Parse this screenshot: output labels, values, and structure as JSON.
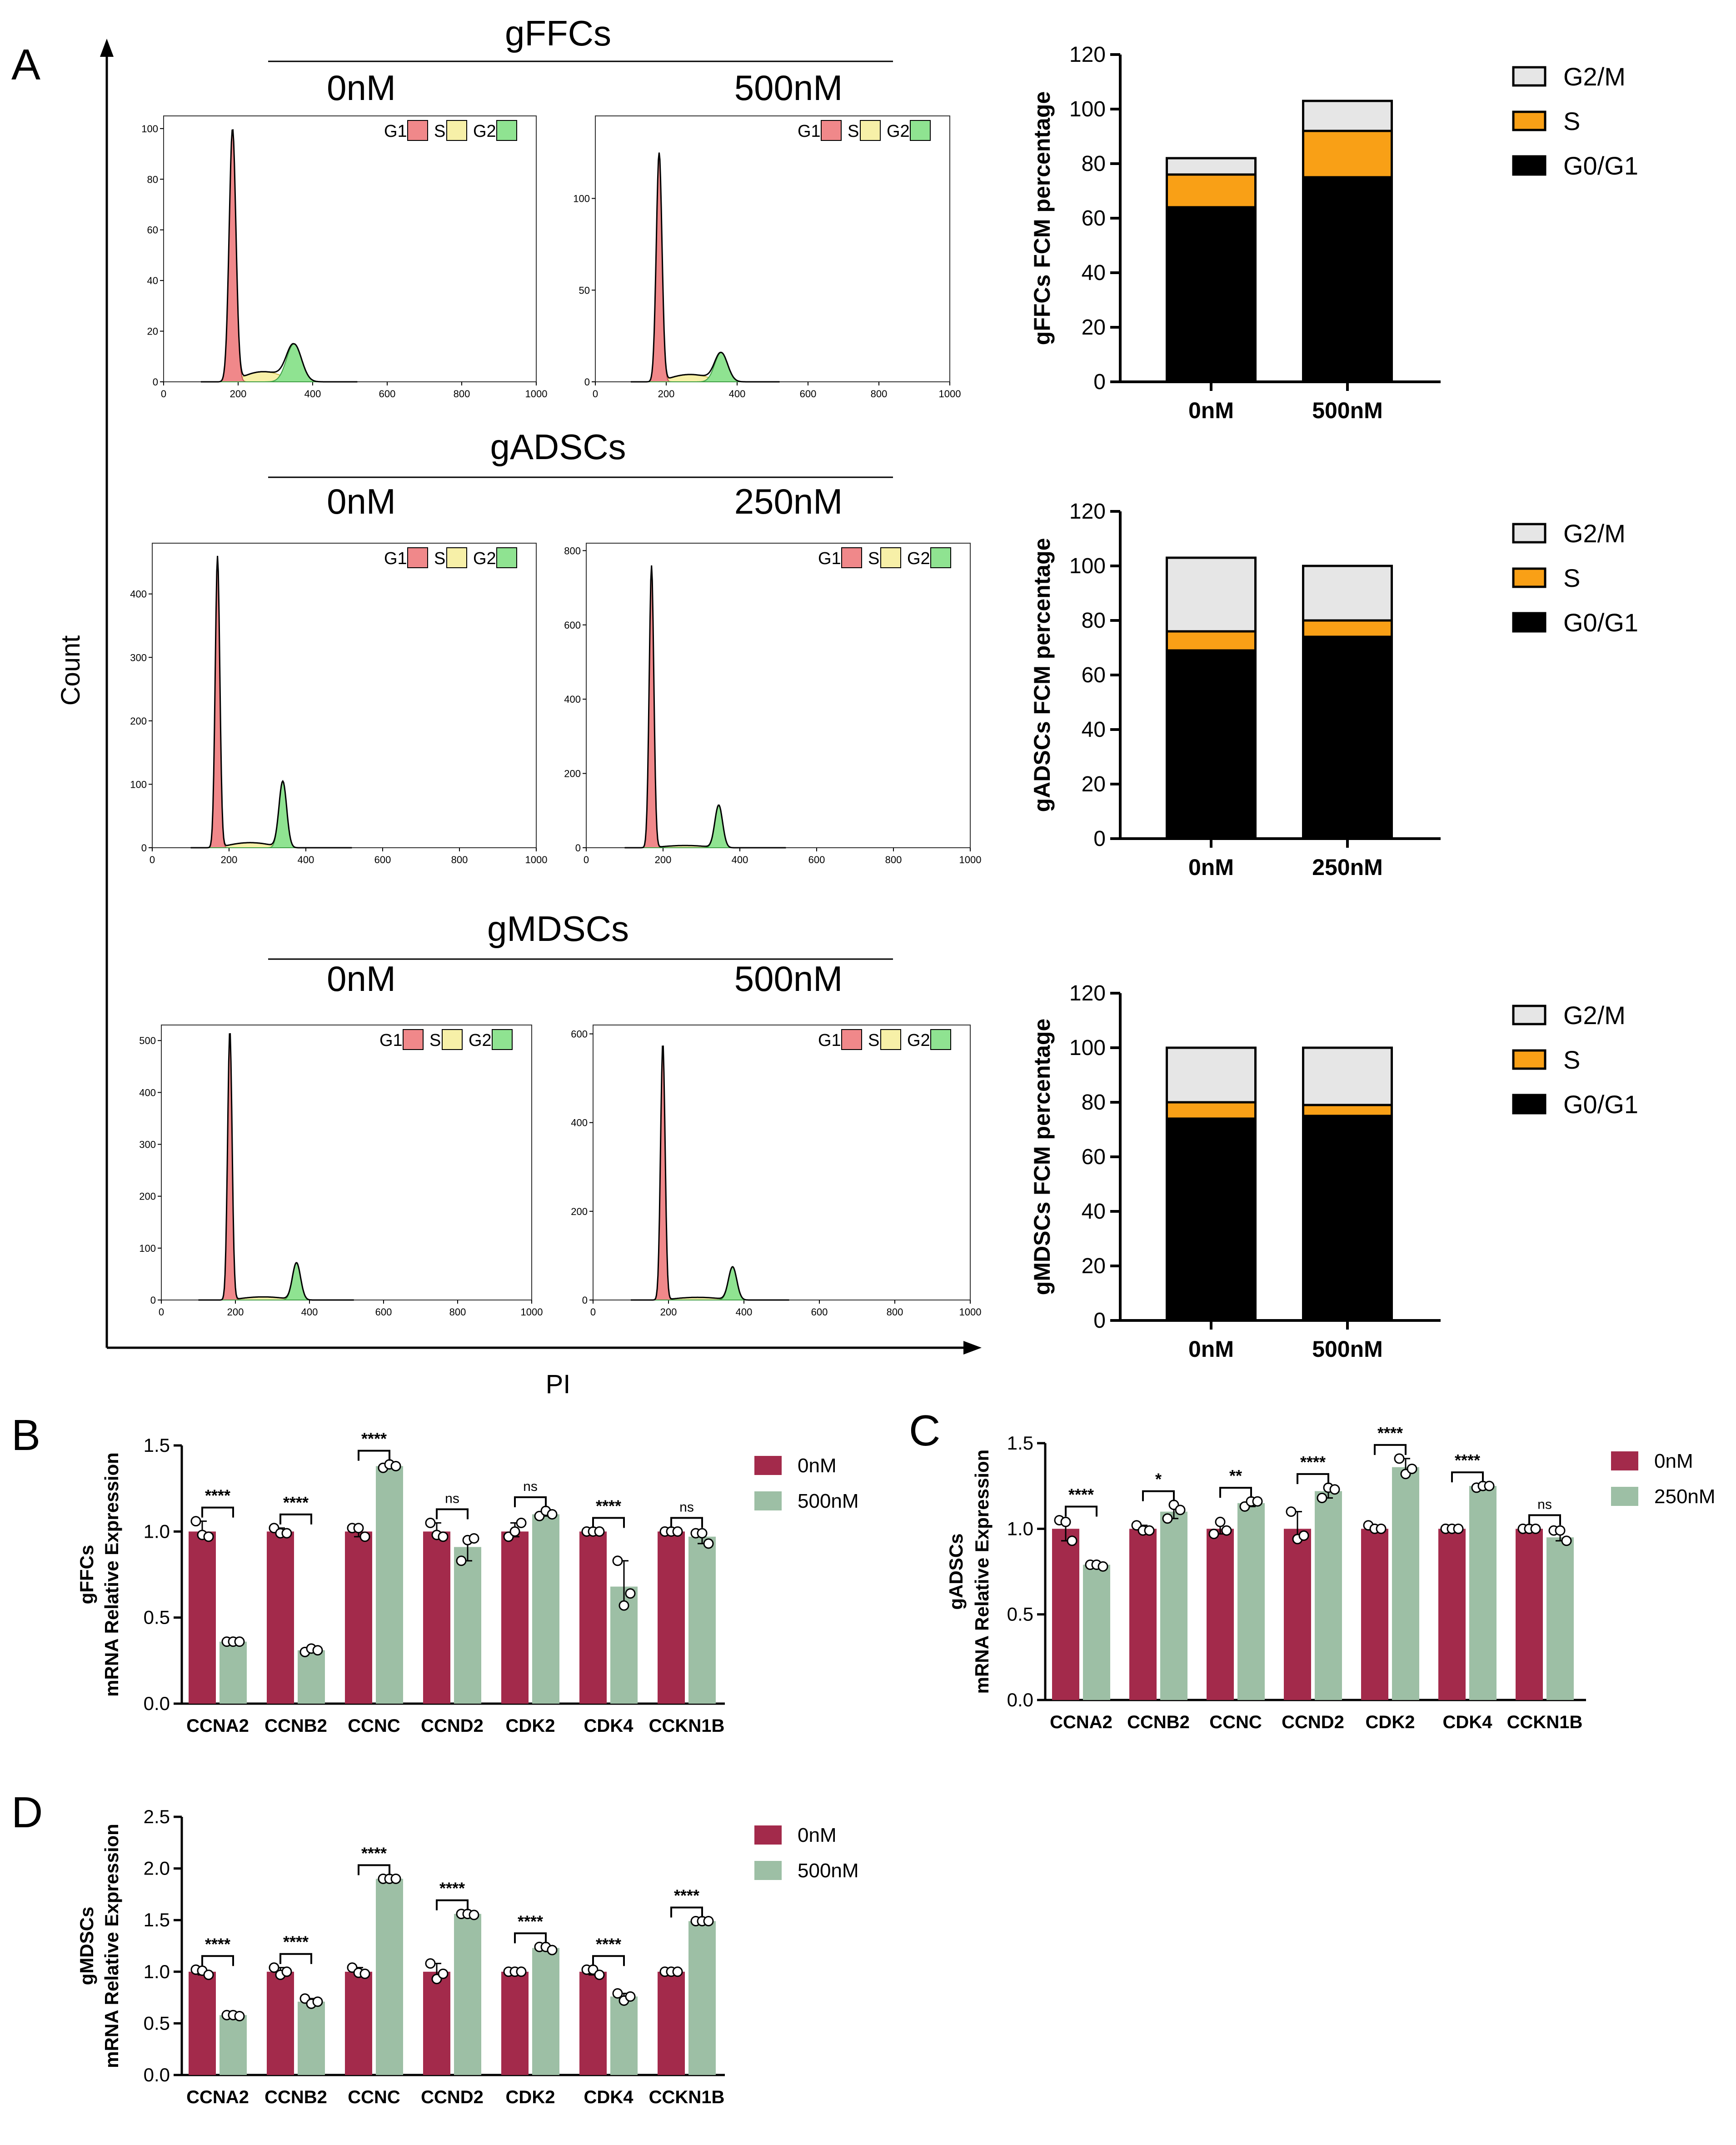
{
  "panel_labels": {
    "A": "A",
    "B": "B",
    "C": "C",
    "D": "D"
  },
  "axis_labels": {
    "count": "Count",
    "pi": "PI"
  },
  "histogram_rows": [
    {
      "title": "gFFCs",
      "conditions": [
        "0nM",
        "500nM"
      ],
      "legend": [
        "G1",
        "S",
        "G2"
      ],
      "plots": [
        {
          "x_ticks": [
            "0",
            "200",
            "400",
            "600",
            "800",
            "1000"
          ],
          "y_ticks": [
            "0",
            "20",
            "40",
            "60",
            "80",
            "100"
          ],
          "ymax": 105,
          "g1": {
            "pos": 185,
            "peak": 100,
            "width": 9
          },
          "g2": {
            "pos": 350,
            "peak": 15,
            "width": 20
          },
          "s_level": 4
        },
        {
          "x_ticks": [
            "0",
            "200",
            "400",
            "600",
            "800",
            "1000"
          ],
          "y_ticks": [
            "0",
            "50",
            "100"
          ],
          "ymax": 145,
          "g1": {
            "pos": 180,
            "peak": 125,
            "width": 8
          },
          "g2": {
            "pos": 355,
            "peak": 16,
            "width": 18
          },
          "s_level": 4
        }
      ]
    },
    {
      "title": "gADSCs",
      "conditions": [
        "0nM",
        "250nM"
      ],
      "legend": [
        "G1",
        "S",
        "G2"
      ],
      "plots": [
        {
          "x_ticks": [
            "0",
            "200",
            "400",
            "600",
            "800",
            "1000"
          ],
          "y_ticks": [
            "0",
            "100",
            "200",
            "300",
            "400"
          ],
          "ymax": 480,
          "g1": {
            "pos": 170,
            "peak": 460,
            "width": 6
          },
          "g2": {
            "pos": 340,
            "peak": 105,
            "width": 10
          },
          "s_level": 8
        },
        {
          "x_ticks": [
            "0",
            "200",
            "400",
            "600",
            "800",
            "1000"
          ],
          "y_ticks": [
            "0",
            "200",
            "400",
            "600",
            "800"
          ],
          "ymax": 820,
          "g1": {
            "pos": 170,
            "peak": 760,
            "width": 6
          },
          "g2": {
            "pos": 345,
            "peak": 115,
            "width": 10
          },
          "s_level": 6
        }
      ]
    },
    {
      "title": "gMDSCs",
      "conditions": [
        "0nM",
        "500nM"
      ],
      "legend": [
        "G1",
        "S",
        "G2"
      ],
      "plots": [
        {
          "x_ticks": [
            "0",
            "200",
            "400",
            "600",
            "800",
            "1000"
          ],
          "y_ticks": [
            "0",
            "100",
            "200",
            "300",
            "400",
            "500"
          ],
          "ymax": 530,
          "g1": {
            "pos": 185,
            "peak": 520,
            "width": 6
          },
          "g2": {
            "pos": 365,
            "peak": 72,
            "width": 11
          },
          "s_level": 6
        },
        {
          "x_ticks": [
            "0",
            "200",
            "400",
            "600",
            "800",
            "1000"
          ],
          "y_ticks": [
            "0",
            "200",
            "400",
            "600"
          ],
          "ymax": 620,
          "g1": {
            "pos": 185,
            "peak": 580,
            "width": 6
          },
          "g2": {
            "pos": 370,
            "peak": 75,
            "width": 11
          },
          "s_level": 6
        }
      ]
    }
  ],
  "chart_data": [
    {
      "type": "bar",
      "stacked": true,
      "ylabel": "gFFCs FCM percentage",
      "categories": [
        "0nM",
        "500nM"
      ],
      "y_ticks": [
        "0",
        "20",
        "40",
        "60",
        "80",
        "100",
        "120"
      ],
      "ylim": [
        0,
        120
      ],
      "series": [
        {
          "name": "G0/G1",
          "color": "#000000",
          "values": [
            64,
            75
          ]
        },
        {
          "name": "S",
          "color": "#f9a016",
          "values": [
            12,
            17
          ]
        },
        {
          "name": "G2/M",
          "color": "#e6e6e6",
          "values": [
            6,
            11
          ]
        }
      ],
      "legend": [
        "G2/M",
        "S",
        "G0/G1"
      ]
    },
    {
      "type": "bar",
      "stacked": true,
      "ylabel": "gADSCs FCM percentage",
      "categories": [
        "0nM",
        "250nM"
      ],
      "y_ticks": [
        "0",
        "20",
        "40",
        "60",
        "80",
        "100",
        "120"
      ],
      "ylim": [
        0,
        120
      ],
      "series": [
        {
          "name": "G0/G1",
          "color": "#000000",
          "values": [
            69,
            74
          ]
        },
        {
          "name": "S",
          "color": "#f9a016",
          "values": [
            7,
            6
          ]
        },
        {
          "name": "G2/M",
          "color": "#e6e6e6",
          "values": [
            27,
            20
          ]
        }
      ],
      "legend": [
        "G2/M",
        "S",
        "G0/G1"
      ]
    },
    {
      "type": "bar",
      "stacked": true,
      "ylabel": "gMDSCs FCM percentage",
      "categories": [
        "0nM",
        "500nM"
      ],
      "y_ticks": [
        "0",
        "20",
        "40",
        "60",
        "80",
        "100",
        "120"
      ],
      "ylim": [
        0,
        120
      ],
      "series": [
        {
          "name": "G0/G1",
          "color": "#000000",
          "values": [
            74,
            75
          ]
        },
        {
          "name": "S",
          "color": "#f9a016",
          "values": [
            6,
            4
          ]
        },
        {
          "name": "G2/M",
          "color": "#e6e6e6",
          "values": [
            20,
            21
          ]
        }
      ],
      "legend": [
        "G2/M",
        "S",
        "G0/G1"
      ]
    },
    {
      "type": "bar",
      "grouped": true,
      "ylabel_top": "gFFCs",
      "ylabel_bottom": "mRNA Relative Expression",
      "categories": [
        "CCNA2",
        "CCNB2",
        "CCNC",
        "CCND2",
        "CDK2",
        "CDK4",
        "CCKN1B"
      ],
      "y_ticks": [
        "0.0",
        "0.5",
        "1.0",
        "1.5"
      ],
      "ylim": [
        0,
        1.5
      ],
      "series": [
        {
          "name": "0nM",
          "color": "#a32a4b",
          "values": [
            1.0,
            1.0,
            1.0,
            1.0,
            1.0,
            1.0,
            1.0
          ],
          "points": [
            [
              1.06,
              0.98,
              0.97
            ],
            [
              1.02,
              0.99,
              0.99
            ],
            [
              1.02,
              1.02,
              0.97
            ],
            [
              1.05,
              0.98,
              0.97
            ],
            [
              0.97,
              1.0,
              1.05
            ],
            [
              1.0,
              1.0,
              1.0
            ],
            [
              1.0,
              1.0,
              1.0
            ]
          ]
        },
        {
          "name": "500nM",
          "color": "#9dbfa5",
          "values": [
            0.36,
            0.31,
            1.38,
            0.91,
            1.1,
            0.68,
            0.97
          ],
          "points": [
            [
              0.36,
              0.36,
              0.36
            ],
            [
              0.3,
              0.32,
              0.31
            ],
            [
              1.37,
              1.39,
              1.38
            ],
            [
              0.83,
              0.95,
              0.96
            ],
            [
              1.09,
              1.12,
              1.1
            ],
            [
              0.83,
              0.57,
              0.64
            ],
            [
              0.99,
              0.99,
              0.93
            ]
          ]
        }
      ],
      "significance": [
        "****",
        "****",
        "****",
        "ns",
        "ns",
        "****",
        "ns"
      ]
    },
    {
      "type": "bar",
      "grouped": true,
      "ylabel_top": "gADSCs",
      "ylabel_bottom": "mRNA Relative Expression",
      "categories": [
        "CCNA2",
        "CCNB2",
        "CCNC",
        "CCND2",
        "CDK2",
        "CDK4",
        "CCKN1B"
      ],
      "y_ticks": [
        "0.0",
        "0.5",
        "1.0",
        "1.5"
      ],
      "ylim": [
        0,
        1.5
      ],
      "series": [
        {
          "name": "0nM",
          "color": "#a32a4b",
          "values": [
            1.0,
            1.0,
            1.0,
            1.0,
            1.0,
            1.0,
            1.0
          ],
          "points": [
            [
              1.05,
              1.04,
              0.93
            ],
            [
              1.02,
              0.99,
              0.99
            ],
            [
              0.97,
              1.04,
              0.99
            ],
            [
              1.1,
              0.94,
              0.96
            ],
            [
              1.02,
              1.0,
              1.0
            ],
            [
              1.0,
              1.0,
              1.0
            ],
            [
              1.0,
              1.0,
              1.0
            ]
          ]
        },
        {
          "name": "250nM",
          "color": "#9dbfa5",
          "values": [
            0.79,
            1.1,
            1.15,
            1.22,
            1.36,
            1.25,
            0.95
          ],
          "points": [
            [
              0.79,
              0.79,
              0.78
            ],
            [
              1.06,
              1.14,
              1.11
            ],
            [
              1.13,
              1.16,
              1.16
            ],
            [
              1.18,
              1.24,
              1.23
            ],
            [
              1.41,
              1.32,
              1.35
            ],
            [
              1.24,
              1.25,
              1.25
            ],
            [
              0.99,
              0.99,
              0.93
            ]
          ]
        }
      ],
      "significance": [
        "****",
        "*",
        "**",
        "****",
        "****",
        "****",
        "ns"
      ]
    },
    {
      "type": "bar",
      "grouped": true,
      "ylabel_top": "gMDSCs",
      "ylabel_bottom": "mRNA Relative Expression",
      "categories": [
        "CCNA2",
        "CCNB2",
        "CCNC",
        "CCND2",
        "CDK2",
        "CDK4",
        "CCKN1B"
      ],
      "y_ticks": [
        "0.0",
        "0.5",
        "1.0",
        "1.5",
        "2.0",
        "2.5"
      ],
      "ylim": [
        0,
        2.5
      ],
      "series": [
        {
          "name": "0nM",
          "color": "#a32a4b",
          "values": [
            1.0,
            1.0,
            1.0,
            1.0,
            1.0,
            1.0,
            1.0
          ],
          "points": [
            [
              1.02,
              1.01,
              0.97
            ],
            [
              1.04,
              0.97,
              1.0
            ],
            [
              1.04,
              0.99,
              0.98
            ],
            [
              1.08,
              0.93,
              0.98
            ],
            [
              1.0,
              1.0,
              1.0
            ],
            [
              1.02,
              1.02,
              0.97
            ],
            [
              1.0,
              1.0,
              1.0
            ]
          ]
        },
        {
          "name": "500nM",
          "color": "#9dbfa5",
          "values": [
            0.58,
            0.71,
            1.9,
            1.56,
            1.23,
            0.76,
            1.49
          ],
          "points": [
            [
              0.58,
              0.58,
              0.57
            ],
            [
              0.74,
              0.69,
              0.71
            ],
            [
              1.9,
              1.9,
              1.9
            ],
            [
              1.56,
              1.56,
              1.55
            ],
            [
              1.24,
              1.24,
              1.21
            ],
            [
              0.79,
              0.72,
              0.76
            ],
            [
              1.49,
              1.49,
              1.49
            ]
          ]
        }
      ],
      "significance": [
        "****",
        "****",
        "****",
        "****",
        "****",
        "****",
        "****"
      ]
    }
  ]
}
